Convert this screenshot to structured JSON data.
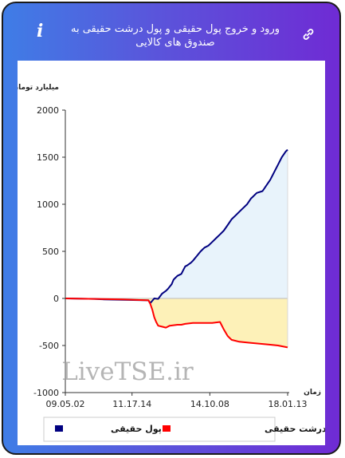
{
  "header": {
    "title": "ورود و خروج پول حقیقی و پول درشت حقیقی به صندوق های کالایی",
    "info_icon": "info-icon",
    "link_icon": "link-icon"
  },
  "watermark": "LiveTSE.ir",
  "colors": {
    "series_real": "#000080",
    "series_big": "#ff0000",
    "fill_real": "#e8f3fb",
    "fill_big": "#fdf1b8"
  },
  "chart_data": {
    "type": "area",
    "ylabel": "میلیارد تومان",
    "xlabel": "زمان",
    "ylim": [
      -1000,
      2000
    ],
    "yticks": [
      2000,
      1500,
      1000,
      500,
      0,
      -500,
      -1000
    ],
    "xtick_labels": [
      "09.05.02",
      "11.17.14",
      "14.10.08",
      "18.01.13"
    ],
    "xtick_positions": [
      0,
      0.3,
      0.65,
      1.0
    ],
    "grid": false,
    "legend": "bottom",
    "series": [
      {
        "name": "پول حقیقی",
        "color": "#000080",
        "points": [
          [
            0,
            0
          ],
          [
            0.15,
            -5
          ],
          [
            0.2,
            -10
          ],
          [
            0.3,
            -15
          ],
          [
            0.43,
            -20
          ],
          [
            0.44,
            -50
          ],
          [
            0.46,
            0
          ],
          [
            0.48,
            -5
          ],
          [
            0.5,
            50
          ],
          [
            0.52,
            80
          ],
          [
            0.53,
            100
          ],
          [
            0.55,
            150
          ],
          [
            0.56,
            200
          ],
          [
            0.57,
            220
          ],
          [
            0.58,
            240
          ],
          [
            0.6,
            260
          ],
          [
            0.61,
            300
          ],
          [
            0.62,
            340
          ],
          [
            0.63,
            350
          ],
          [
            0.65,
            380
          ],
          [
            0.66,
            400
          ],
          [
            0.68,
            450
          ],
          [
            0.7,
            500
          ],
          [
            0.72,
            540
          ],
          [
            0.74,
            560
          ],
          [
            0.76,
            600
          ],
          [
            0.78,
            640
          ],
          [
            0.8,
            680
          ],
          [
            0.82,
            720
          ],
          [
            0.84,
            780
          ],
          [
            0.86,
            840
          ],
          [
            0.88,
            880
          ],
          [
            0.9,
            920
          ],
          [
            0.92,
            960
          ],
          [
            0.94,
            1000
          ],
          [
            0.96,
            1060
          ],
          [
            0.97,
            1080
          ],
          [
            0.99,
            1120
          ],
          [
            1.02,
            1140
          ],
          [
            1.04,
            1200
          ],
          [
            1.06,
            1260
          ],
          [
            1.08,
            1340
          ],
          [
            1.1,
            1420
          ],
          [
            1.12,
            1500
          ],
          [
            1.14,
            1560
          ],
          [
            1.15,
            1580
          ]
        ]
      },
      {
        "name": "پول درشت حقیقی",
        "color": "#ff0000",
        "points": [
          [
            0,
            0
          ],
          [
            0.15,
            -5
          ],
          [
            0.3,
            -10
          ],
          [
            0.43,
            -20
          ],
          [
            0.44,
            -60
          ],
          [
            0.45,
            -120
          ],
          [
            0.46,
            -200
          ],
          [
            0.47,
            -250
          ],
          [
            0.48,
            -290
          ],
          [
            0.5,
            -300
          ],
          [
            0.52,
            -310
          ],
          [
            0.54,
            -290
          ],
          [
            0.58,
            -280
          ],
          [
            0.6,
            -280
          ],
          [
            0.62,
            -270
          ],
          [
            0.66,
            -260
          ],
          [
            0.7,
            -260
          ],
          [
            0.76,
            -260
          ],
          [
            0.8,
            -250
          ],
          [
            0.82,
            -330
          ],
          [
            0.84,
            -400
          ],
          [
            0.86,
            -440
          ],
          [
            0.9,
            -460
          ],
          [
            0.95,
            -470
          ],
          [
            1.0,
            -480
          ],
          [
            1.05,
            -490
          ],
          [
            1.1,
            -500
          ],
          [
            1.15,
            -520
          ]
        ]
      }
    ]
  }
}
